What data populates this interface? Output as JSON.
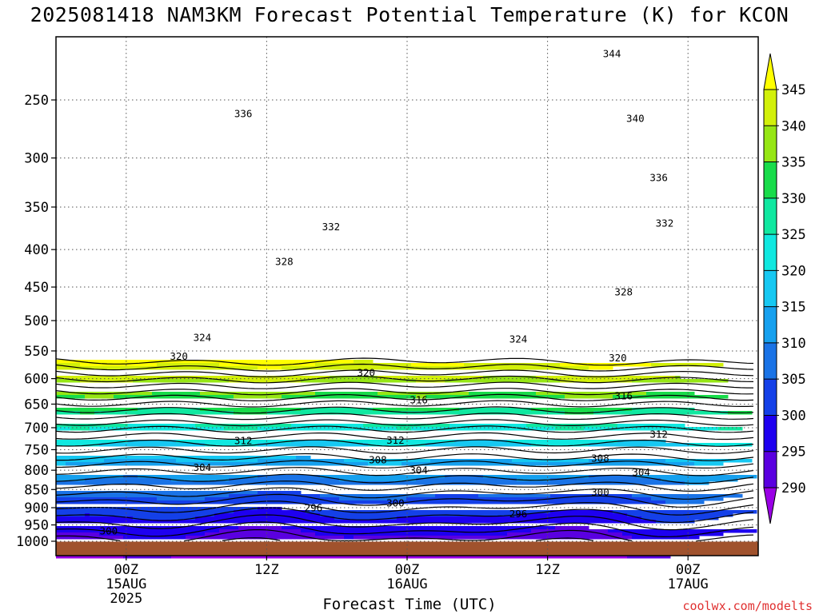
{
  "title": "2025081418 NAM3KM Forecast Potential Temperature (K) for KCON",
  "watermark": "coolwx.com/modelts",
  "chart_data": {
    "type": "heatmap",
    "title": "2025081418 NAM3KM Forecast Potential Temperature (K) for KCON",
    "xlabel": "Forecast Time (UTC)",
    "ylabel": "",
    "y_scale": "log-pressure",
    "y_unit": "hPa",
    "y_ticks": [
      250,
      300,
      350,
      400,
      450,
      500,
      550,
      600,
      650,
      700,
      750,
      800,
      850,
      900,
      950,
      1000
    ],
    "x_ticks": [
      {
        "label": "00Z",
        "sublabel": "15AUG",
        "year": "2025",
        "hour": 6
      },
      {
        "label": "12Z",
        "sublabel": "",
        "year": "",
        "hour": 18
      },
      {
        "label": "00Z",
        "sublabel": "16AUG",
        "year": "",
        "hour": 30
      },
      {
        "label": "12Z",
        "sublabel": "",
        "year": "",
        "hour": 42
      },
      {
        "label": "00Z",
        "sublabel": "17AUG",
        "year": "",
        "hour": 54
      }
    ],
    "x_range_hours": [
      0,
      60
    ],
    "grid": true,
    "colorbar": {
      "levels": [
        290,
        295,
        300,
        305,
        310,
        315,
        320,
        325,
        330,
        335,
        340,
        345
      ],
      "colors": [
        "#9a00e6",
        "#5a00e0",
        "#1e00f0",
        "#1440e8",
        "#1a73e6",
        "#16a0ee",
        "#16c8f2",
        "#10e8e0",
        "#10e8a0",
        "#18dc4a",
        "#96e614",
        "#d2f00a",
        "#ffff00"
      ]
    },
    "contour_labels": [
      {
        "value": 344,
        "hour": 47.5,
        "p": 216
      },
      {
        "value": 336,
        "hour": 16,
        "p": 261
      },
      {
        "value": 340,
        "hour": 49.5,
        "p": 265
      },
      {
        "value": 336,
        "hour": 51.5,
        "p": 319
      },
      {
        "value": 332,
        "hour": 23.5,
        "p": 372
      },
      {
        "value": 332,
        "hour": 52,
        "p": 368
      },
      {
        "value": 328,
        "hour": 19.5,
        "p": 415
      },
      {
        "value": 328,
        "hour": 48.5,
        "p": 457
      },
      {
        "value": 324,
        "hour": 12.5,
        "p": 527
      },
      {
        "value": 324,
        "hour": 39.5,
        "p": 530
      },
      {
        "value": 320,
        "hour": 10.5,
        "p": 559
      },
      {
        "value": 320,
        "hour": 26.5,
        "p": 589
      },
      {
        "value": 320,
        "hour": 48,
        "p": 562
      },
      {
        "value": 316,
        "hour": 31,
        "p": 641
      },
      {
        "value": 316,
        "hour": 48.5,
        "p": 633
      },
      {
        "value": 312,
        "hour": 16,
        "p": 729
      },
      {
        "value": 312,
        "hour": 29,
        "p": 728
      },
      {
        "value": 312,
        "hour": 51.5,
        "p": 714
      },
      {
        "value": 308,
        "hour": 27.5,
        "p": 774
      },
      {
        "value": 308,
        "hour": 46.5,
        "p": 770
      },
      {
        "value": 304,
        "hour": 12.5,
        "p": 793
      },
      {
        "value": 304,
        "hour": 31,
        "p": 800
      },
      {
        "value": 304,
        "hour": 50,
        "p": 805
      },
      {
        "value": 300,
        "hour": 46.5,
        "p": 857
      },
      {
        "value": 300,
        "hour": 29,
        "p": 886
      },
      {
        "value": 296,
        "hour": 22,
        "p": 900
      },
      {
        "value": 296,
        "hour": 39.5,
        "p": 917
      },
      {
        "value": 300,
        "hour": 4.5,
        "p": 968
      }
    ],
    "surface_color": "#a0522d"
  }
}
